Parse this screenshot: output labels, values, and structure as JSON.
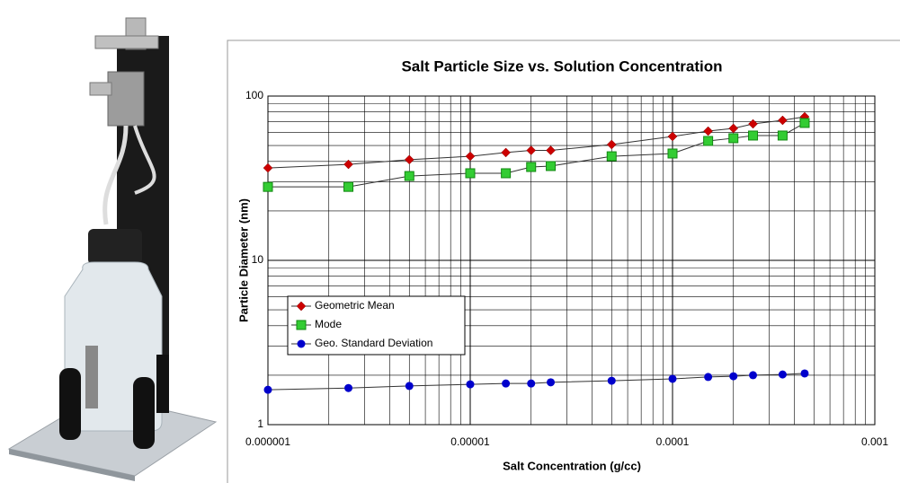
{
  "chart_data": {
    "type": "scatter-line",
    "title": "Salt Particle Size vs. Solution Concentration",
    "x_label": "Salt Concentration (g/cc)",
    "y_label": "Particle Diameter (nm)",
    "x": [
      1e-06,
      2.5e-06,
      5e-06,
      1e-05,
      1.5e-05,
      2e-05,
      2.5e-05,
      5e-05,
      0.0001,
      0.00015,
      0.0002,
      0.00025,
      0.00035,
      0.00045
    ],
    "series": [
      {
        "name": "Geometric Mean",
        "color": "#cc0000",
        "marker": "diamond",
        "values": [
          36.5,
          38.4,
          41,
          43,
          45.3,
          46.7,
          46.7,
          50.7,
          56.8,
          61.2,
          63.6,
          67.7,
          71.2,
          74.8
        ]
      },
      {
        "name": "Mode",
        "color": "#33cc33",
        "marker": "square",
        "values": [
          28,
          28,
          32.6,
          33.9,
          33.9,
          37,
          37.5,
          43,
          44.7,
          53.3,
          55.4,
          57.5,
          57.5,
          68.6
        ]
      },
      {
        "name": "Geo. Standard Deviation",
        "color": "#0000cc",
        "marker": "circle",
        "values": [
          1.63,
          1.67,
          1.72,
          1.76,
          1.78,
          1.78,
          1.81,
          1.85,
          1.9,
          1.95,
          1.97,
          2.0,
          2.02,
          2.05
        ]
      }
    ],
    "xlim": [
      1e-06,
      0.001
    ],
    "ylim": [
      1,
      100
    ],
    "xticks": [
      {
        "value": 1e-06,
        "label": "0.000001"
      },
      1e-05,
      0.0001,
      0.001
    ],
    "yticks": [
      1,
      10,
      100
    ],
    "xscale": "log",
    "yscale": "log",
    "grid": true,
    "minor_grid": true,
    "legend": "lower-left"
  }
}
